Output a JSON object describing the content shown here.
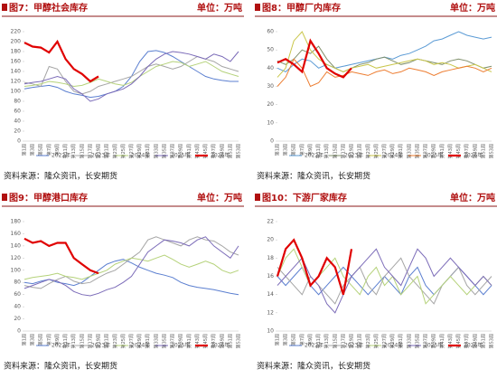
{
  "chart_data": [
    {
      "type": "line",
      "title": "图7：甲醇社会库存",
      "unit": "单位：万吨",
      "source": "资料来源：隆众资讯，长安期货",
      "categories": [
        "第1周",
        "第3周",
        "第5周",
        "第7周",
        "第9周",
        "第11周",
        "第13周",
        "第15周",
        "第17周",
        "第19周",
        "第21周",
        "第23周",
        "第25周",
        "第27周",
        "第29周",
        "第31周",
        "第33周",
        "第35周",
        "第37周",
        "第39周",
        "第41周",
        "第43周",
        "第45周",
        "第47周",
        "第49周",
        "第51周",
        "第53周"
      ],
      "ylim": [
        0,
        220
      ],
      "yticks": [
        0,
        20,
        40,
        60,
        80,
        100,
        120,
        140,
        160,
        180,
        200,
        220
      ],
      "series": [
        {
          "name": "2022年",
          "color": "#5b7fd0",
          "values": [
            105,
            108,
            110,
            112,
            108,
            100,
            95,
            92,
            88,
            90,
            95,
            100,
            110,
            130,
            160,
            180,
            182,
            178,
            170,
            160,
            150,
            140,
            130,
            125,
            122,
            120,
            120
          ]
        },
        {
          "name": "2023年",
          "color": "#a5a5a5",
          "values": [
            118,
            115,
            110,
            150,
            145,
            120,
            100,
            95,
            100,
            110,
            115,
            120,
            125,
            130,
            140,
            150,
            155,
            150,
            145,
            150,
            160,
            170,
            165,
            160,
            150,
            145,
            140
          ]
        },
        {
          "name": "2024年",
          "color": "#b5d27a",
          "values": [
            110,
            112,
            115,
            120,
            118,
            115,
            110,
            112,
            118,
            125,
            120,
            115,
            112,
            118,
            130,
            140,
            150,
            155,
            160,
            158,
            150,
            155,
            160,
            150,
            140,
            135,
            130
          ]
        },
        {
          "name": "2025年",
          "color": "#7b6bb8",
          "values": [
            115,
            118,
            120,
            125,
            130,
            125,
            105,
            95,
            80,
            85,
            95,
            100,
            105,
            115,
            130,
            150,
            165,
            175,
            180,
            178,
            175,
            170,
            165,
            175,
            170,
            160,
            180
          ]
        },
        {
          "name": "2026年",
          "color": "#e00000",
          "values": [
            198,
            190,
            188,
            178,
            200,
            165,
            145,
            135,
            120,
            130,
            null,
            null,
            null,
            null,
            null,
            null,
            null,
            null,
            null,
            null,
            null,
            null,
            null,
            null,
            null,
            null,
            null
          ]
        }
      ]
    },
    {
      "type": "line",
      "title": "图8：甲醇厂内库存",
      "unit": "单位：万吨",
      "source": "资料来源：隆众资讯，长安期货",
      "categories": [
        "第1周",
        "第3周",
        "第5周",
        "第7周",
        "第9周",
        "第11周",
        "第13周",
        "第15周",
        "第17周",
        "第19周",
        "第21周",
        "第23周",
        "第25周",
        "第27周",
        "第29周",
        "第31周",
        "第33周",
        "第35周",
        "第37周",
        "第39周",
        "第41周",
        "第43周",
        "第45周",
        "第47周",
        "第49周",
        "第51周",
        "第53周"
      ],
      "ylim": [
        0,
        60
      ],
      "yticks": [
        0,
        10,
        20,
        30,
        40,
        50,
        60
      ],
      "series": [
        {
          "name": "2022年",
          "color": "#5b9bd5",
          "values": [
            40,
            38,
            42,
            45,
            44,
            40,
            42,
            40,
            41,
            42,
            43,
            44,
            45,
            46,
            45,
            47,
            48,
            50,
            52,
            55,
            56,
            58,
            60,
            58,
            57,
            56,
            57
          ]
        },
        {
          "name": "2023年",
          "color": "#7f8f6a",
          "values": [
            44,
            42,
            45,
            50,
            48,
            52,
            45,
            40,
            38,
            40,
            42,
            43,
            45,
            46,
            44,
            42,
            43,
            45,
            44,
            43,
            42,
            44,
            45,
            44,
            42,
            40,
            41
          ]
        },
        {
          "name": "2024年",
          "color": "#c9c64a",
          "values": [
            35,
            40,
            55,
            60,
            50,
            45,
            42,
            40,
            38,
            40,
            41,
            42,
            40,
            41,
            42,
            43,
            44,
            45,
            44,
            42,
            43,
            42,
            40,
            41,
            42,
            40,
            38
          ]
        },
        {
          "name": "2025年",
          "color": "#ed7d31",
          "values": [
            30,
            35,
            45,
            40,
            30,
            32,
            38,
            35,
            36,
            38,
            37,
            36,
            38,
            39,
            37,
            38,
            40,
            39,
            38,
            36,
            38,
            39,
            40,
            41,
            40,
            38,
            40
          ]
        },
        {
          "name": "2026年",
          "color": "#e00000",
          "values": [
            43,
            45,
            42,
            38,
            55,
            48,
            40,
            37,
            35,
            40,
            null,
            null,
            null,
            null,
            null,
            null,
            null,
            null,
            null,
            null,
            null,
            null,
            null,
            null,
            null,
            null,
            null
          ]
        }
      ]
    },
    {
      "type": "line",
      "title": "图9：甲醇港口库存",
      "unit": "单位：万吨",
      "source": "资料来源：隆众资讯，长安期货",
      "categories": [
        "第1周",
        "第3周",
        "第5周",
        "第7周",
        "第9周",
        "第11周",
        "第13周",
        "第15周",
        "第17周",
        "第19周",
        "第21周",
        "第23周",
        "第25周",
        "第27周",
        "第29周",
        "第31周",
        "第33周",
        "第35周",
        "第37周",
        "第39周",
        "第41周",
        "第43周",
        "第45周",
        "第47周",
        "第49周",
        "第51周",
        "第53周"
      ],
      "ylim": [
        0,
        180
      ],
      "yticks": [
        0,
        20,
        40,
        60,
        80,
        100,
        120,
        140,
        160,
        180
      ],
      "series": [
        {
          "name": "2022年",
          "color": "#5b7fd0",
          "values": [
            80,
            78,
            82,
            85,
            80,
            78,
            75,
            80,
            90,
            100,
            110,
            115,
            118,
            112,
            105,
            100,
            95,
            92,
            88,
            80,
            75,
            72,
            70,
            68,
            65,
            62,
            60
          ]
        },
        {
          "name": "2023年",
          "color": "#a5a5a5",
          "values": [
            75,
            72,
            70,
            78,
            85,
            90,
            82,
            78,
            80,
            88,
            95,
            100,
            110,
            120,
            130,
            150,
            155,
            150,
            145,
            140,
            150,
            155,
            150,
            148,
            140,
            130,
            125
          ]
        },
        {
          "name": "2024年",
          "color": "#b5d27a",
          "values": [
            85,
            88,
            90,
            92,
            95,
            90,
            88,
            85,
            90,
            95,
            100,
            110,
            115,
            120,
            118,
            115,
            120,
            125,
            118,
            110,
            105,
            110,
            115,
            110,
            100,
            95,
            100
          ]
        },
        {
          "name": "2025年",
          "color": "#7b6bb8",
          "values": [
            70,
            75,
            80,
            85,
            82,
            75,
            65,
            60,
            58,
            62,
            68,
            72,
            80,
            90,
            110,
            130,
            140,
            150,
            148,
            145,
            140,
            150,
            155,
            140,
            130,
            120,
            140
          ]
        },
        {
          "name": "2026年",
          "color": "#e00000",
          "values": [
            152,
            145,
            148,
            140,
            145,
            145,
            120,
            110,
            100,
            95,
            null,
            null,
            null,
            null,
            null,
            null,
            null,
            null,
            null,
            null,
            null,
            null,
            null,
            null,
            null,
            null,
            null
          ]
        }
      ]
    },
    {
      "type": "line",
      "title": "图10：下游厂家库存",
      "unit": "单位：万吨",
      "source": "资料来源：隆众资讯，长安期货",
      "categories": [
        "第1周",
        "第3周",
        "第5周",
        "第7周",
        "第9周",
        "第11周",
        "第13周",
        "第15周",
        "第17周",
        "第19周",
        "第21周",
        "第23周",
        "第25周",
        "第27周",
        "第29周",
        "第31周",
        "第33周",
        "第35周",
        "第37周",
        "第39周",
        "第41周",
        "第43周",
        "第45周",
        "第47周",
        "第49周",
        "第51周",
        "第53周"
      ],
      "ylim": [
        10,
        22
      ],
      "yticks": [
        10,
        12,
        14,
        16,
        18,
        20,
        22
      ],
      "series": [
        {
          "name": "2022年",
          "color": "#5b7fd0",
          "values": [
            16,
            15,
            16,
            17,
            15,
            14,
            15,
            16,
            17,
            16,
            15,
            14,
            15,
            16,
            15,
            14,
            16,
            17,
            15,
            14,
            15,
            16,
            17,
            16,
            15,
            14,
            15
          ]
        },
        {
          "name": "2023年",
          "color": "#a5a5a5",
          "values": [
            17,
            16,
            15,
            14,
            16,
            15,
            14,
            13,
            15,
            16,
            17,
            15,
            14,
            16,
            17,
            18,
            16,
            15,
            14,
            13,
            15,
            16,
            17,
            15,
            14,
            15,
            16
          ]
        },
        {
          "name": "2024年",
          "color": "#b5d27a",
          "values": [
            16,
            18,
            19,
            17,
            15,
            16,
            17,
            18,
            16,
            15,
            14,
            16,
            17,
            15,
            16,
            14,
            15,
            16,
            13,
            14,
            15,
            16,
            15,
            14,
            15,
            16,
            15
          ]
        },
        {
          "name": "2025年",
          "color": "#7b6bb8",
          "values": [
            15,
            16,
            17,
            18,
            16,
            15,
            13,
            12,
            14,
            16,
            17,
            18,
            19,
            17,
            16,
            15,
            17,
            19,
            18,
            16,
            17,
            18,
            17,
            16,
            15,
            16,
            15
          ]
        },
        {
          "name": "2026年",
          "color": "#e00000",
          "values": [
            16,
            19,
            20,
            18,
            15,
            16,
            18,
            17,
            14,
            19,
            null,
            null,
            null,
            null,
            null,
            null,
            null,
            null,
            null,
            null,
            null,
            null,
            null,
            null,
            null,
            null,
            null
          ]
        }
      ]
    }
  ]
}
